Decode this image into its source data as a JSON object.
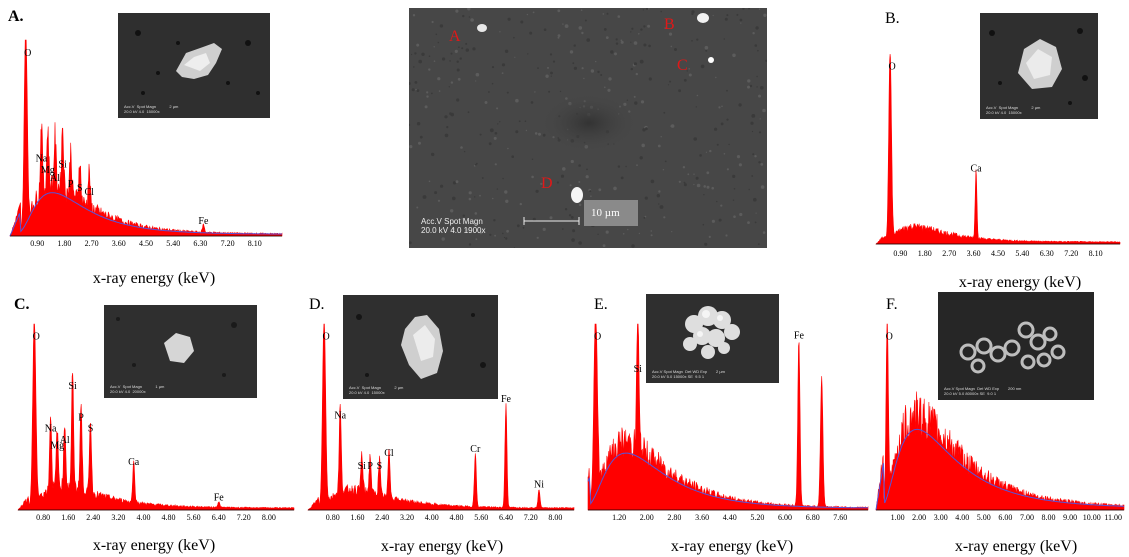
{
  "sem": {
    "labels": [
      "A",
      "B",
      "C",
      "D"
    ],
    "caption_line1": "Acc.V   Spot Magn",
    "caption_line2": "20.0 kV  4.0   1900x",
    "scale_bar": "10 µm"
  },
  "panels": [
    {
      "id": "a",
      "label": "A.",
      "xlabel": "x-ray energy (keV)",
      "inset_caption": "Acc.V  Spot Magn            2 µm\n20.0 kV 4.0  15000x"
    },
    {
      "id": "b",
      "label": "B.",
      "xlabel": "x-ray energy (keV)",
      "inset_caption": "Acc.V  Spot Magn            2 µm\n20.0 kV 4.0  15000x"
    },
    {
      "id": "c",
      "label": "C.",
      "xlabel": "x-ray energy (keV)",
      "inset_caption": "Acc.V  Spot Magn            1 µm\n20.0 kV 4.0  20000x"
    },
    {
      "id": "d",
      "label": "D.",
      "xlabel": "x-ray energy (keV)",
      "inset_caption": "Acc.V  Spot Magn            2 µm\n20.0 kV 4.0  15000x"
    },
    {
      "id": "e",
      "label": "E.",
      "xlabel": "x-ray energy (keV)",
      "inset_caption": "Acc.V Spot Magn  Det WD Exp        2 µm\n20.0 kV 5.0 15000x SE  9.5 1"
    },
    {
      "id": "f",
      "label": "F.",
      "xlabel": "x-ray energy (keV)",
      "inset_caption": "Acc.V Spot Magn  Det WD Exp        200 nm\n20.0 kV 5.0 80000x SE  9.0 1"
    }
  ],
  "chart_data": [
    {
      "type": "area",
      "panel": "A.",
      "xlabel": "x-ray energy (keV)",
      "xlim": [
        0,
        9
      ],
      "ylim": [
        0,
        1
      ],
      "xticks": [
        "0.90",
        "1.80",
        "2.70",
        "3.60",
        "4.50",
        "5.40",
        "6.30",
        "7.20",
        "8.10"
      ],
      "peaks": [
        {
          "element": "O",
          "x": 0.52,
          "y": 1.0
        },
        {
          "element": "Na",
          "x": 1.04,
          "y": 0.36
        },
        {
          "element": "Mg",
          "x": 1.25,
          "y": 0.3
        },
        {
          "element": "Al",
          "x": 1.49,
          "y": 0.26
        },
        {
          "element": "Si",
          "x": 1.74,
          "y": 0.33
        },
        {
          "element": "P",
          "x": 2.01,
          "y": 0.23
        },
        {
          "element": "S",
          "x": 2.31,
          "y": 0.21
        },
        {
          "element": "Cl",
          "x": 2.62,
          "y": 0.19
        },
        {
          "element": "Fe",
          "x": 6.4,
          "y": 0.04
        }
      ],
      "background_max": 0.25
    },
    {
      "type": "area",
      "panel": "B.",
      "xlabel": "x-ray energy (keV)",
      "xlim": [
        0,
        9
      ],
      "ylim": [
        0,
        1
      ],
      "xticks": [
        "0.90",
        "1.80",
        "2.70",
        "3.60",
        "4.50",
        "5.40",
        "6.30",
        "7.20",
        "8.10"
      ],
      "peaks": [
        {
          "element": "O",
          "x": 0.52,
          "y": 1.0
        },
        {
          "element": "Ca",
          "x": 3.69,
          "y": 0.36
        }
      ],
      "background_max": 0.08
    },
    {
      "type": "area",
      "panel": "C.",
      "xlabel": "x-ray energy (keV)",
      "xlim": [
        0,
        8.8
      ],
      "ylim": [
        0,
        1
      ],
      "xticks": [
        "0.80",
        "1.60",
        "2.40",
        "3.20",
        "4.00",
        "4.80",
        "5.60",
        "6.40",
        "7.20",
        "8.00"
      ],
      "peaks": [
        {
          "element": "O",
          "x": 0.52,
          "y": 1.0
        },
        {
          "element": "Na",
          "x": 1.04,
          "y": 0.4
        },
        {
          "element": "Mg",
          "x": 1.25,
          "y": 0.31
        },
        {
          "element": "Al",
          "x": 1.49,
          "y": 0.34
        },
        {
          "element": "Si",
          "x": 1.74,
          "y": 0.63
        },
        {
          "element": "P",
          "x": 2.01,
          "y": 0.46
        },
        {
          "element": "S",
          "x": 2.31,
          "y": 0.4
        },
        {
          "element": "Ca",
          "x": 3.69,
          "y": 0.22
        },
        {
          "element": "Fe",
          "x": 6.4,
          "y": 0.03
        }
      ],
      "background_max": 0.12
    },
    {
      "type": "area",
      "panel": "D.",
      "xlabel": "x-ray energy (keV)",
      "xlim": [
        0,
        8.6
      ],
      "ylim": [
        0,
        1
      ],
      "xticks": [
        "0.80",
        "1.60",
        "2.40",
        "3.20",
        "4.00",
        "4.80",
        "5.60",
        "6.40",
        "7.20",
        "8.00"
      ],
      "peaks": [
        {
          "element": "O",
          "x": 0.52,
          "y": 1.0
        },
        {
          "element": "Na",
          "x": 1.04,
          "y": 0.47
        },
        {
          "element": "Si",
          "x": 1.74,
          "y": 0.2
        },
        {
          "element": "P",
          "x": 2.01,
          "y": 0.2
        },
        {
          "element": "S",
          "x": 2.31,
          "y": 0.2
        },
        {
          "element": "Cl",
          "x": 2.62,
          "y": 0.27
        },
        {
          "element": "Cr",
          "x": 5.41,
          "y": 0.29
        },
        {
          "element": "Fe",
          "x": 6.4,
          "y": 0.56
        },
        {
          "element": "Ni",
          "x": 7.47,
          "y": 0.1
        }
      ],
      "background_max": 0.1
    },
    {
      "type": "area",
      "panel": "E.",
      "xlabel": "x-ray energy (keV)",
      "xlim": [
        0.3,
        8.4
      ],
      "ylim": [
        0,
        1
      ],
      "xticks": [
        "1.20",
        "2.00",
        "2.80",
        "3.60",
        "4.40",
        "5.20",
        "6.00",
        "6.80",
        "7.60"
      ],
      "peaks": [
        {
          "element": "O",
          "x": 0.52,
          "y": 1.0
        },
        {
          "element": "Si",
          "x": 1.74,
          "y": 0.72
        },
        {
          "element": "Fe",
          "x": 6.4,
          "y": 0.9
        }
      ],
      "background_max": 0.35
    },
    {
      "type": "area",
      "panel": "F.",
      "xlabel": "x-ray energy (keV)",
      "xlim": [
        0,
        11.5
      ],
      "ylim": [
        0,
        1
      ],
      "xticks": [
        "1.00",
        "2.00",
        "3.00",
        "4.00",
        "5.00",
        "6.00",
        "7.00",
        "8.00",
        "9.00",
        "10.00",
        "11.00"
      ],
      "peaks": [
        {
          "element": "O",
          "x": 0.52,
          "y": 1.0
        }
      ],
      "background_max": 0.5
    }
  ],
  "colors": {
    "spectrum": "#ff0000",
    "fit": "#5555dd",
    "sem_label": "#e01818"
  }
}
